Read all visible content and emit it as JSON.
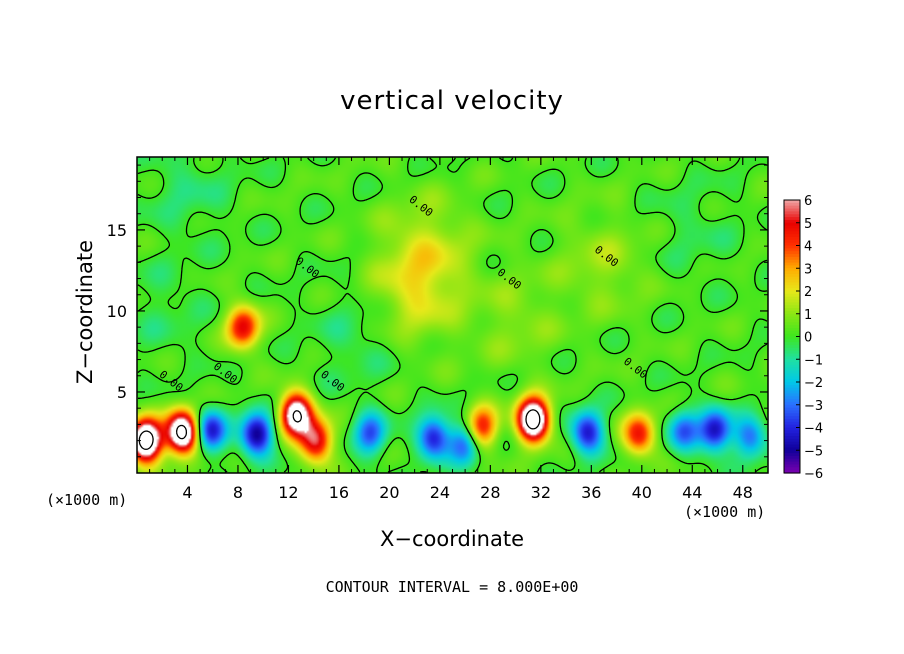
{
  "chart_data": {
    "type": "heatmap",
    "title": "vertical velocity",
    "xlabel": "X−coordinate",
    "ylabel": "Z−coordinate",
    "x_unit_left": "(×1000 m)",
    "x_unit_right": "(×1000 m)",
    "footer": "CONTOUR INTERVAL = 8.000E+00",
    "xlim": [
      0,
      50
    ],
    "ylim": [
      0,
      19.5
    ],
    "x_ticks": [
      4,
      8,
      12,
      16,
      20,
      24,
      28,
      32,
      36,
      40,
      44,
      48
    ],
    "x_tick_labels": [
      "4",
      "8",
      "12",
      "16",
      "20",
      "24",
      "28",
      "32",
      "36",
      "40",
      "44",
      "48"
    ],
    "y_ticks": [
      5,
      10,
      15
    ],
    "y_tick_labels": [
      "5",
      "10",
      "15"
    ],
    "colorbar": {
      "min": -6,
      "max": 6,
      "tick_labels": [
        "6",
        "5",
        "4",
        "3",
        "2",
        "1",
        "0",
        "−1",
        "−2",
        "−3",
        "−4",
        "−5",
        "−6"
      ],
      "colors": [
        {
          "v": -6,
          "c": "#7a00b0"
        },
        {
          "v": -5,
          "c": "#10009a"
        },
        {
          "v": -4,
          "c": "#2222e0"
        },
        {
          "v": -3,
          "c": "#2a70ff"
        },
        {
          "v": -2,
          "c": "#00c8e8"
        },
        {
          "v": -1,
          "c": "#20e0a0"
        },
        {
          "v": 0,
          "c": "#3ee61e"
        },
        {
          "v": 1,
          "c": "#8ce614"
        },
        {
          "v": 2,
          "c": "#e8e81a"
        },
        {
          "v": 3,
          "c": "#ffaa00"
        },
        {
          "v": 4,
          "c": "#ff3000"
        },
        {
          "v": 5,
          "c": "#e80000"
        },
        {
          "v": 6,
          "c": "#f0a8a8"
        }
      ]
    },
    "features": [
      {
        "x": 0.7,
        "z": 2.0,
        "a": 9.5
      },
      {
        "x": 3.6,
        "z": 2.5,
        "a": 9.0
      },
      {
        "x": 5.8,
        "z": 2.6,
        "a": -4.5
      },
      {
        "x": 9.5,
        "z": 2.4,
        "a": -5.5
      },
      {
        "x": 12.6,
        "z": 3.6,
        "a": 8.0
      },
      {
        "x": 14.2,
        "z": 2.0,
        "a": 5.5
      },
      {
        "x": 8.4,
        "z": 9.0,
        "a": 5.0
      },
      {
        "x": 18.5,
        "z": 2.4,
        "a": -3.5
      },
      {
        "x": 23.5,
        "z": 2.2,
        "a": -4.5
      },
      {
        "x": 27.3,
        "z": 2.8,
        "a": 4.5
      },
      {
        "x": 26.0,
        "z": 1.8,
        "a": -3.5
      },
      {
        "x": 31.4,
        "z": 3.3,
        "a": 9.5
      },
      {
        "x": 35.7,
        "z": 2.5,
        "a": -4.5
      },
      {
        "x": 39.8,
        "z": 2.4,
        "a": 4.5
      },
      {
        "x": 43.3,
        "z": 2.6,
        "a": -3.2
      },
      {
        "x": 45.8,
        "z": 2.6,
        "a": -4.8
      },
      {
        "x": 48.6,
        "z": 2.2,
        "a": -3.2
      },
      {
        "x": 23.0,
        "z": 14.0,
        "a": 1.3
      },
      {
        "x": 22.0,
        "z": 11.0,
        "a": 1.6
      },
      {
        "x": 17.5,
        "z": 8.5,
        "a": -0.7
      },
      {
        "x": 4.0,
        "z": 17.5,
        "a": -0.7
      },
      {
        "x": 30.0,
        "z": 9.5,
        "a": 0.8
      },
      {
        "x": 37.0,
        "z": 13.0,
        "a": 1.0
      },
      {
        "x": 2.0,
        "z": 10.0,
        "a": -0.5
      },
      {
        "x": 44.0,
        "z": 15.0,
        "a": -0.5
      }
    ],
    "contour_labels": [
      "0.00",
      "0.00",
      "0.00",
      "0.00",
      "0.00",
      "0.00",
      "0.00",
      "0.00"
    ]
  }
}
